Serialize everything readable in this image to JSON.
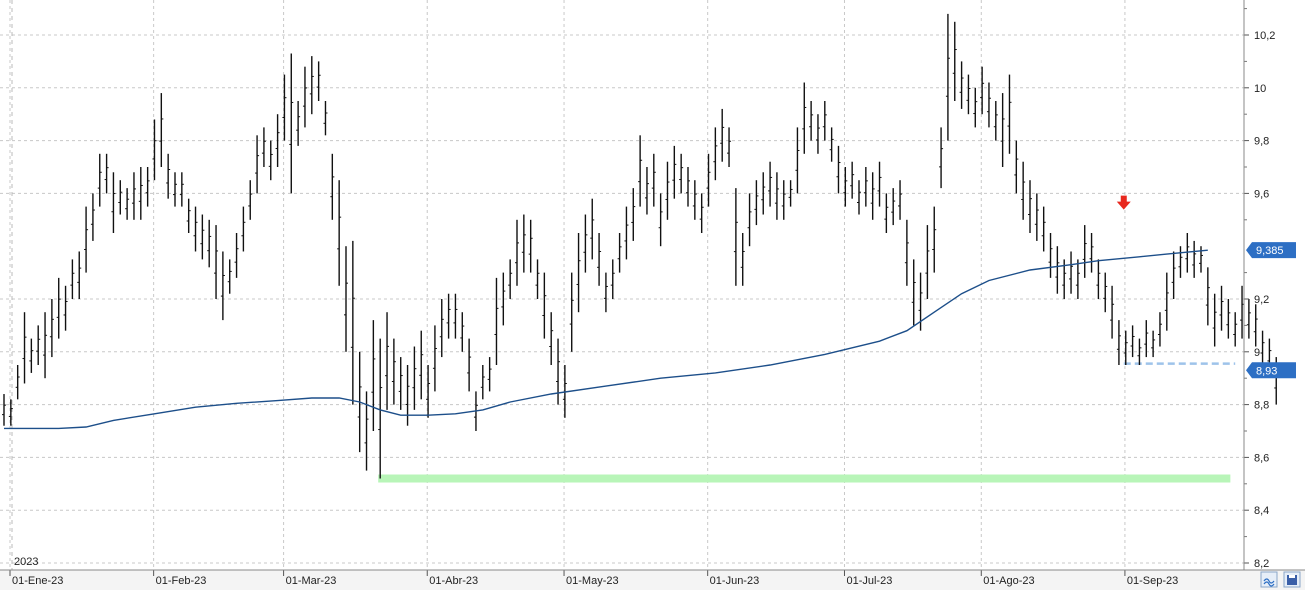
{
  "chart_data": {
    "type": "ohlc",
    "y_ticks": [
      "10,2",
      "10",
      "9,8",
      "9,6",
      "9,2",
      "9",
      "8,8",
      "8,6",
      "8,4",
      "8,2"
    ],
    "y_tick_values": [
      10.2,
      10.0,
      9.8,
      9.6,
      9.2,
      9.0,
      8.8,
      8.6,
      8.4,
      8.2
    ],
    "ylim": [
      8.2,
      10.3
    ],
    "x_ticks": [
      "01-Ene-23",
      "01-Feb-23",
      "01-Mar-23",
      "01-Abr-23",
      "01-May-23",
      "01-Jun-23",
      "01-Jul-23",
      "01-Ago-23",
      "01-Sep-23"
    ],
    "x_tick_bar_index": [
      0,
      21,
      40,
      61,
      81,
      102,
      122,
      142,
      163
    ],
    "year_label": "2023",
    "grid": true,
    "bars": [
      {
        "h": 8.84,
        "l": 8.72
      },
      {
        "h": 8.82,
        "l": 8.72
      },
      {
        "h": 8.95,
        "l": 8.82
      },
      {
        "h": 9.15,
        "l": 8.88
      },
      {
        "h": 9.05,
        "l": 8.92
      },
      {
        "h": 9.1,
        "l": 8.95
      },
      {
        "h": 9.15,
        "l": 8.9
      },
      {
        "h": 9.2,
        "l": 8.98
      },
      {
        "h": 9.28,
        "l": 9.05
      },
      {
        "h": 9.25,
        "l": 9.08
      },
      {
        "h": 9.35,
        "l": 9.2
      },
      {
        "h": 9.38,
        "l": 9.2
      },
      {
        "h": 9.55,
        "l": 9.3
      },
      {
        "h": 9.6,
        "l": 9.42
      },
      {
        "h": 9.75,
        "l": 9.55
      },
      {
        "h": 9.75,
        "l": 9.6
      },
      {
        "h": 9.68,
        "l": 9.45
      },
      {
        "h": 9.65,
        "l": 9.52
      },
      {
        "h": 9.62,
        "l": 9.5
      },
      {
        "h": 9.68,
        "l": 9.5
      },
      {
        "h": 9.7,
        "l": 9.5
      },
      {
        "h": 9.7,
        "l": 9.55
      },
      {
        "h": 9.88,
        "l": 9.65
      },
      {
        "h": 9.98,
        "l": 9.7
      },
      {
        "h": 9.75,
        "l": 9.58
      },
      {
        "h": 9.68,
        "l": 9.55
      },
      {
        "h": 9.68,
        "l": 9.55
      },
      {
        "h": 9.58,
        "l": 9.45
      },
      {
        "h": 9.55,
        "l": 9.38
      },
      {
        "h": 9.52,
        "l": 9.35
      },
      {
        "h": 9.5,
        "l": 9.32
      },
      {
        "h": 9.48,
        "l": 9.2
      },
      {
        "h": 9.38,
        "l": 9.12
      },
      {
        "h": 9.35,
        "l": 9.22
      },
      {
        "h": 9.45,
        "l": 9.28
      },
      {
        "h": 9.55,
        "l": 9.38
      },
      {
        "h": 9.65,
        "l": 9.5
      },
      {
        "h": 9.82,
        "l": 9.6
      },
      {
        "h": 9.85,
        "l": 9.7
      },
      {
        "h": 9.8,
        "l": 9.65
      },
      {
        "h": 9.9,
        "l": 9.7
      },
      {
        "h": 10.05,
        "l": 9.8
      },
      {
        "h": 10.13,
        "l": 9.6
      },
      {
        "h": 9.95,
        "l": 9.78
      },
      {
        "h": 10.08,
        "l": 9.85
      },
      {
        "h": 10.12,
        "l": 9.9
      },
      {
        "h": 10.1,
        "l": 9.95
      },
      {
        "h": 9.95,
        "l": 9.82
      },
      {
        "h": 9.75,
        "l": 9.5
      },
      {
        "h": 9.65,
        "l": 9.25
      },
      {
        "h": 9.4,
        "l": 9.0
      },
      {
        "h": 9.42,
        "l": 8.8
      },
      {
        "h": 9.0,
        "l": 8.62
      },
      {
        "h": 8.85,
        "l": 8.55
      },
      {
        "h": 9.12,
        "l": 8.7
      },
      {
        "h": 9.05,
        "l": 8.52
      },
      {
        "h": 9.15,
        "l": 8.78
      },
      {
        "h": 9.05,
        "l": 8.8
      },
      {
        "h": 8.98,
        "l": 8.78
      },
      {
        "h": 8.95,
        "l": 8.72
      },
      {
        "h": 9.02,
        "l": 8.78
      },
      {
        "h": 9.08,
        "l": 8.82
      },
      {
        "h": 8.95,
        "l": 8.75
      },
      {
        "h": 9.1,
        "l": 8.85
      },
      {
        "h": 9.2,
        "l": 8.98
      },
      {
        "h": 9.22,
        "l": 9.05
      },
      {
        "h": 9.22,
        "l": 9.05
      },
      {
        "h": 9.15,
        "l": 9.0
      },
      {
        "h": 9.05,
        "l": 8.85
      },
      {
        "h": 8.85,
        "l": 8.7
      },
      {
        "h": 8.95,
        "l": 8.82
      },
      {
        "h": 8.98,
        "l": 8.85
      },
      {
        "h": 9.28,
        "l": 8.95
      },
      {
        "h": 9.3,
        "l": 9.1
      },
      {
        "h": 9.35,
        "l": 9.2
      },
      {
        "h": 9.5,
        "l": 9.25
      },
      {
        "h": 9.52,
        "l": 9.3
      },
      {
        "h": 9.5,
        "l": 9.3
      },
      {
        "h": 9.35,
        "l": 9.2
      },
      {
        "h": 9.3,
        "l": 9.05
      },
      {
        "h": 9.15,
        "l": 8.95
      },
      {
        "h": 9.05,
        "l": 8.8
      },
      {
        "h": 8.95,
        "l": 8.75
      },
      {
        "h": 9.3,
        "l": 9.0
      },
      {
        "h": 9.45,
        "l": 9.15
      },
      {
        "h": 9.52,
        "l": 9.3
      },
      {
        "h": 9.58,
        "l": 9.35
      },
      {
        "h": 9.45,
        "l": 9.25
      },
      {
        "h": 9.3,
        "l": 9.15
      },
      {
        "h": 9.35,
        "l": 9.2
      },
      {
        "h": 9.45,
        "l": 9.3
      },
      {
        "h": 9.55,
        "l": 9.35
      },
      {
        "h": 9.62,
        "l": 9.42
      },
      {
        "h": 9.82,
        "l": 9.55
      },
      {
        "h": 9.7,
        "l": 9.52
      },
      {
        "h": 9.75,
        "l": 9.55
      },
      {
        "h": 9.6,
        "l": 9.4
      },
      {
        "h": 9.72,
        "l": 9.5
      },
      {
        "h": 9.78,
        "l": 9.58
      },
      {
        "h": 9.75,
        "l": 9.6
      },
      {
        "h": 9.7,
        "l": 9.55
      },
      {
        "h": 9.65,
        "l": 9.5
      },
      {
        "h": 9.6,
        "l": 9.45
      },
      {
        "h": 9.75,
        "l": 9.55
      },
      {
        "h": 9.85,
        "l": 9.65
      },
      {
        "h": 9.92,
        "l": 9.72
      },
      {
        "h": 9.85,
        "l": 9.7
      },
      {
        "h": 9.62,
        "l": 9.25
      },
      {
        "h": 9.45,
        "l": 9.25
      },
      {
        "h": 9.6,
        "l": 9.4
      },
      {
        "h": 9.65,
        "l": 9.48
      },
      {
        "h": 9.68,
        "l": 9.52
      },
      {
        "h": 9.72,
        "l": 9.55
      },
      {
        "h": 9.68,
        "l": 9.5
      },
      {
        "h": 9.65,
        "l": 9.5
      },
      {
        "h": 9.65,
        "l": 9.55
      },
      {
        "h": 9.85,
        "l": 9.6
      },
      {
        "h": 10.02,
        "l": 9.75
      },
      {
        "h": 9.95,
        "l": 9.8
      },
      {
        "h": 9.9,
        "l": 9.75
      },
      {
        "h": 9.95,
        "l": 9.8
      },
      {
        "h": 9.85,
        "l": 9.72
      },
      {
        "h": 9.78,
        "l": 9.6
      },
      {
        "h": 9.7,
        "l": 9.55
      },
      {
        "h": 9.72,
        "l": 9.58
      },
      {
        "h": 9.65,
        "l": 9.52
      },
      {
        "h": 9.7,
        "l": 9.55
      },
      {
        "h": 9.68,
        "l": 9.5
      },
      {
        "h": 9.72,
        "l": 9.55
      },
      {
        "h": 9.6,
        "l": 9.45
      },
      {
        "h": 9.62,
        "l": 9.48
      },
      {
        "h": 9.65,
        "l": 9.5
      },
      {
        "h": 9.5,
        "l": 9.25
      },
      {
        "h": 9.35,
        "l": 9.1
      },
      {
        "h": 9.3,
        "l": 9.08
      },
      {
        "h": 9.48,
        "l": 9.2
      },
      {
        "h": 9.55,
        "l": 9.3
      },
      {
        "h": 9.85,
        "l": 9.62
      },
      {
        "h": 10.28,
        "l": 9.8
      },
      {
        "h": 10.25,
        "l": 9.95
      },
      {
        "h": 10.1,
        "l": 9.92
      },
      {
        "h": 10.05,
        "l": 9.9
      },
      {
        "h": 10.0,
        "l": 9.85
      },
      {
        "h": 10.08,
        "l": 9.9
      },
      {
        "h": 10.02,
        "l": 9.85
      },
      {
        "h": 9.95,
        "l": 9.8
      },
      {
        "h": 9.98,
        "l": 9.7
      },
      {
        "h": 10.05,
        "l": 9.75
      },
      {
        "h": 9.8,
        "l": 9.6
      },
      {
        "h": 9.72,
        "l": 9.5
      },
      {
        "h": 9.65,
        "l": 9.45
      },
      {
        "h": 9.6,
        "l": 9.42
      },
      {
        "h": 9.55,
        "l": 9.38
      },
      {
        "h": 9.45,
        "l": 9.28
      },
      {
        "h": 9.4,
        "l": 9.22
      },
      {
        "h": 9.35,
        "l": 9.2
      },
      {
        "h": 9.38,
        "l": 9.22
      },
      {
        "h": 9.35,
        "l": 9.2
      },
      {
        "h": 9.48,
        "l": 9.28
      },
      {
        "h": 9.45,
        "l": 9.3
      },
      {
        "h": 9.35,
        "l": 9.2
      },
      {
        "h": 9.3,
        "l": 9.15
      },
      {
        "h": 9.25,
        "l": 9.05
      },
      {
        "h": 9.12,
        "l": 8.95
      },
      {
        "h": 9.08,
        "l": 8.95
      },
      {
        "h": 9.1,
        "l": 8.98
      },
      {
        "h": 9.05,
        "l": 8.95
      },
      {
        "h": 9.12,
        "l": 8.98
      },
      {
        "h": 9.08,
        "l": 8.98
      },
      {
        "h": 9.15,
        "l": 9.02
      },
      {
        "h": 9.3,
        "l": 9.08
      },
      {
        "h": 9.38,
        "l": 9.2
      },
      {
        "h": 9.4,
        "l": 9.28
      },
      {
        "h": 9.45,
        "l": 9.3
      },
      {
        "h": 9.42,
        "l": 9.28
      },
      {
        "h": 9.4,
        "l": 9.3
      },
      {
        "h": 9.32,
        "l": 9.1
      },
      {
        "h": 9.22,
        "l": 9.02
      },
      {
        "h": 9.25,
        "l": 9.08
      },
      {
        "h": 9.2,
        "l": 9.05
      },
      {
        "h": 9.15,
        "l": 9.02
      },
      {
        "h": 9.25,
        "l": 9.05
      },
      {
        "h": 9.2,
        "l": 9.05
      },
      {
        "h": 9.18,
        "l": 9.02
      },
      {
        "h": 9.08,
        "l": 8.95
      },
      {
        "h": 9.05,
        "l": 8.92
      },
      {
        "h": 8.98,
        "l": 8.8
      }
    ],
    "moving_average": [
      [
        0,
        8.71
      ],
      [
        8,
        8.71
      ],
      [
        12,
        8.715
      ],
      [
        16,
        8.74
      ],
      [
        22,
        8.765
      ],
      [
        28,
        8.79
      ],
      [
        34,
        8.805
      ],
      [
        40,
        8.815
      ],
      [
        45,
        8.825
      ],
      [
        49,
        8.825
      ],
      [
        52,
        8.81
      ],
      [
        55,
        8.78
      ],
      [
        58,
        8.76
      ],
      [
        62,
        8.76
      ],
      [
        66,
        8.765
      ],
      [
        70,
        8.78
      ],
      [
        74,
        8.81
      ],
      [
        80,
        8.84
      ],
      [
        88,
        8.87
      ],
      [
        96,
        8.9
      ],
      [
        104,
        8.92
      ],
      [
        112,
        8.95
      ],
      [
        120,
        8.99
      ],
      [
        128,
        9.04
      ],
      [
        132,
        9.08
      ],
      [
        136,
        9.15
      ],
      [
        140,
        9.22
      ],
      [
        144,
        9.27
      ],
      [
        150,
        9.31
      ],
      [
        156,
        9.33
      ],
      [
        160,
        9.345
      ],
      [
        166,
        9.36
      ],
      [
        170,
        9.37
      ],
      [
        176,
        9.385
      ]
    ],
    "price_tags": [
      {
        "label": "9,385",
        "value": 9.385,
        "color": "#2d6fc4"
      },
      {
        "label": "8,93",
        "value": 8.93,
        "color": "#2d6fc4"
      }
    ],
    "support_level": {
      "value": 8.52,
      "from_bar": 55,
      "to_bar": 179,
      "color": "#b8f5b8"
    },
    "dashed_level": {
      "value": 8.955,
      "from_bar": 164,
      "to_bar": 180,
      "color": "#9ec3ea"
    },
    "arrow_marker": {
      "bar": 164,
      "value": 9.565,
      "color": "#e8281e"
    },
    "colors": {
      "bar": "#111111",
      "ma": "#1d4f8a",
      "grid": "#c8c8c8"
    }
  }
}
